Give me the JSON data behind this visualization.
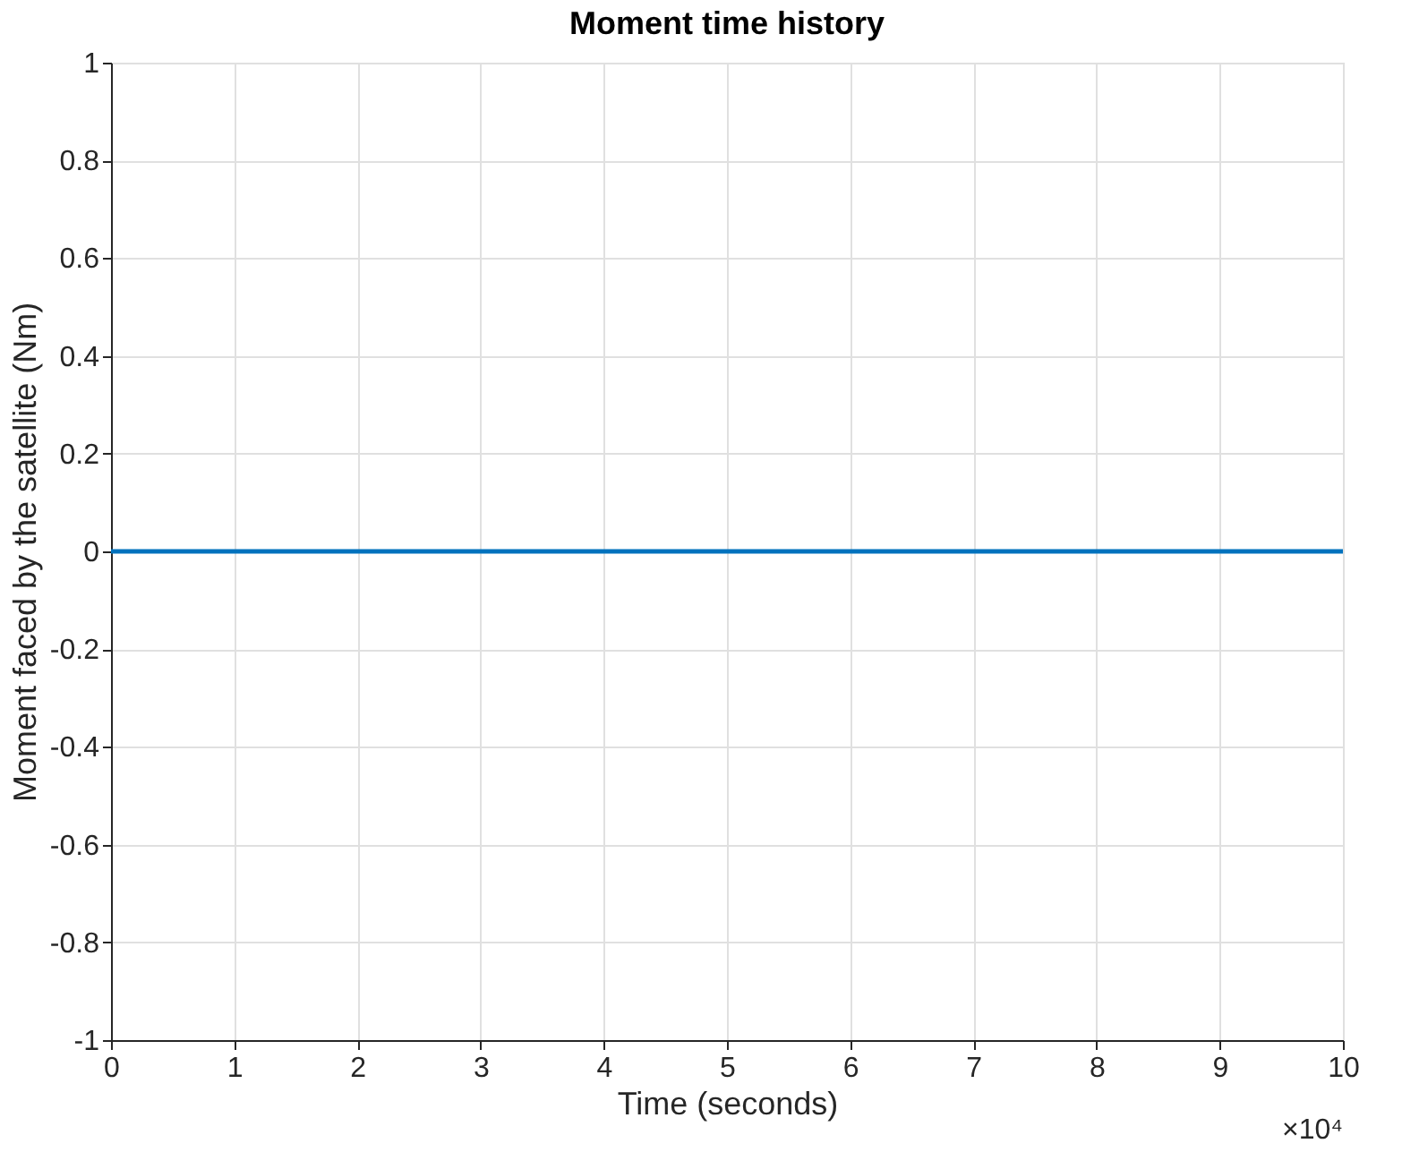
{
  "chart_data": {
    "type": "line",
    "title": "Moment time history",
    "xlabel": "Time (seconds)",
    "ylabel": "Moment faced by the satellite (Nm)",
    "x": [
      0,
      10
    ],
    "series": [
      {
        "color": "#0072bd",
        "values": [
          0,
          0
        ]
      }
    ],
    "xlim": [
      0,
      10
    ],
    "xticks": [
      0,
      1,
      2,
      3,
      4,
      5,
      6,
      7,
      8,
      9,
      10
    ],
    "ylim": [
      -1,
      1
    ],
    "yticks": [
      -1,
      -0.8,
      -0.6,
      -0.4,
      -0.2,
      0,
      0.2,
      0.4,
      0.6,
      0.8,
      1
    ],
    "grid": true,
    "marker": "none",
    "line_style": "solid",
    "annotations": [
      "×10⁴"
    ]
  }
}
